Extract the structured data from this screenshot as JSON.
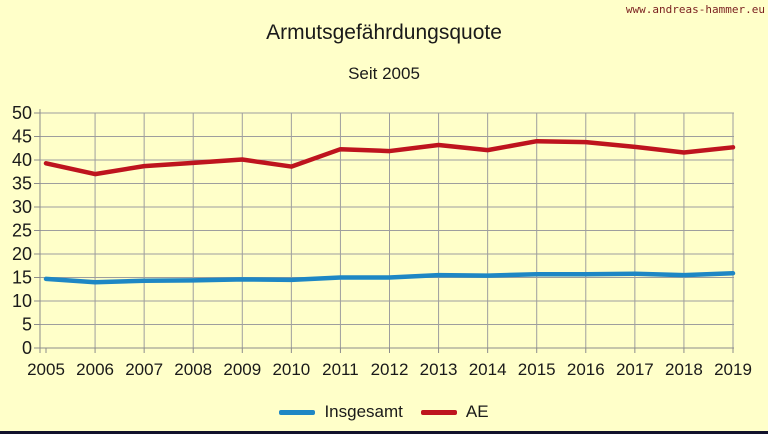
{
  "page": {
    "watermark": "www.andreas-hammer.eu",
    "background_color": "#FFFFC9",
    "watermark_color": "#7A1F1F",
    "bottom_bar_color": "#12122B",
    "text_color": "#1A1A1A"
  },
  "chart_data": {
    "type": "line",
    "title": "Armutsgefährdungsquote",
    "subtitle": "Seit 2005",
    "categories": [
      "2005",
      "2006",
      "2007",
      "2008",
      "2009",
      "2010",
      "2011",
      "2012",
      "2013",
      "2014",
      "2015",
      "2016",
      "2017",
      "2018",
      "2019"
    ],
    "series": [
      {
        "name": "Insgesamt",
        "color": "#1E87C4",
        "values": [
          14.7,
          14.0,
          14.3,
          14.4,
          14.6,
          14.5,
          15.0,
          15.0,
          15.5,
          15.4,
          15.7,
          15.7,
          15.8,
          15.5,
          15.9
        ]
      },
      {
        "name": "AE",
        "color": "#BE141E",
        "values": [
          39.3,
          37.0,
          38.7,
          39.4,
          40.1,
          38.6,
          42.3,
          41.9,
          43.2,
          42.1,
          44.0,
          43.8,
          42.8,
          41.6,
          42.7
        ]
      }
    ],
    "xlabel": "",
    "ylabel": "",
    "ylim": [
      0,
      50
    ],
    "y_ticks": [
      0,
      5,
      10,
      15,
      20,
      25,
      30,
      35,
      40,
      45,
      50
    ],
    "grid": true,
    "grid_color": "#9E9E9E",
    "axis_color": "#8C8C8C",
    "legend_position": "bottom"
  }
}
